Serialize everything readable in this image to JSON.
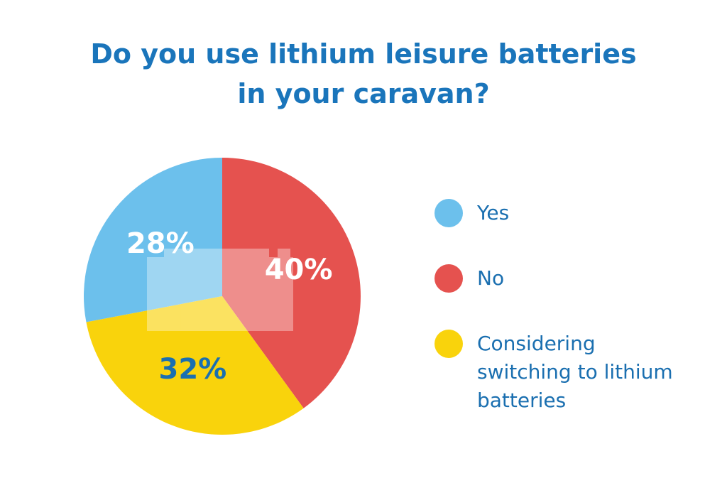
{
  "chart_data": {
    "type": "pie",
    "title": "Do you use lithium leisure batteries in your caravan?",
    "categories": [
      "Yes",
      "No",
      "Considering switching to lithium batteries"
    ],
    "values": [
      28,
      40,
      32
    ],
    "value_labels": [
      "28%",
      "40%",
      "32%"
    ],
    "colors": [
      "#6cc0ec",
      "#e5524f",
      "#f9d30c"
    ],
    "label_colors": [
      "#ffffff",
      "#ffffff",
      "#1a6fb0"
    ]
  }
}
